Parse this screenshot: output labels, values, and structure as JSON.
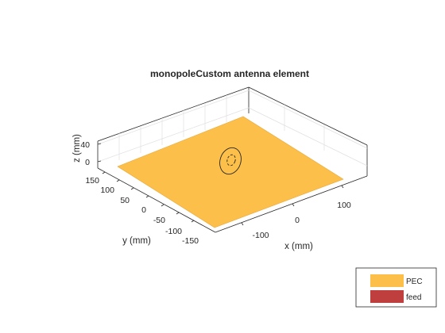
{
  "figure": {
    "title": "monopoleCustom antenna element",
    "axes": {
      "xlabel": "x (mm)",
      "ylabel": "y (mm)",
      "zlabel": "z (mm)",
      "x_ticks": [
        "100",
        "0",
        "-100"
      ],
      "y_ticks": [
        "150",
        "100",
        "50",
        "0",
        "-50",
        "-100",
        "-150"
      ],
      "z_ticks": [
        "40",
        "0"
      ]
    },
    "legend": {
      "placement": "bottom-right",
      "items": [
        {
          "label": "PEC",
          "color": "#fcbf4a"
        },
        {
          "label": "feed",
          "color": "#bf3f3f"
        }
      ]
    },
    "colors": {
      "ground_plane": "#fcbf4a",
      "ground_plane_edge": "#e8a93a",
      "box_edge": "#262626",
      "grid": "#e0e0e0",
      "element": "#262626"
    }
  }
}
